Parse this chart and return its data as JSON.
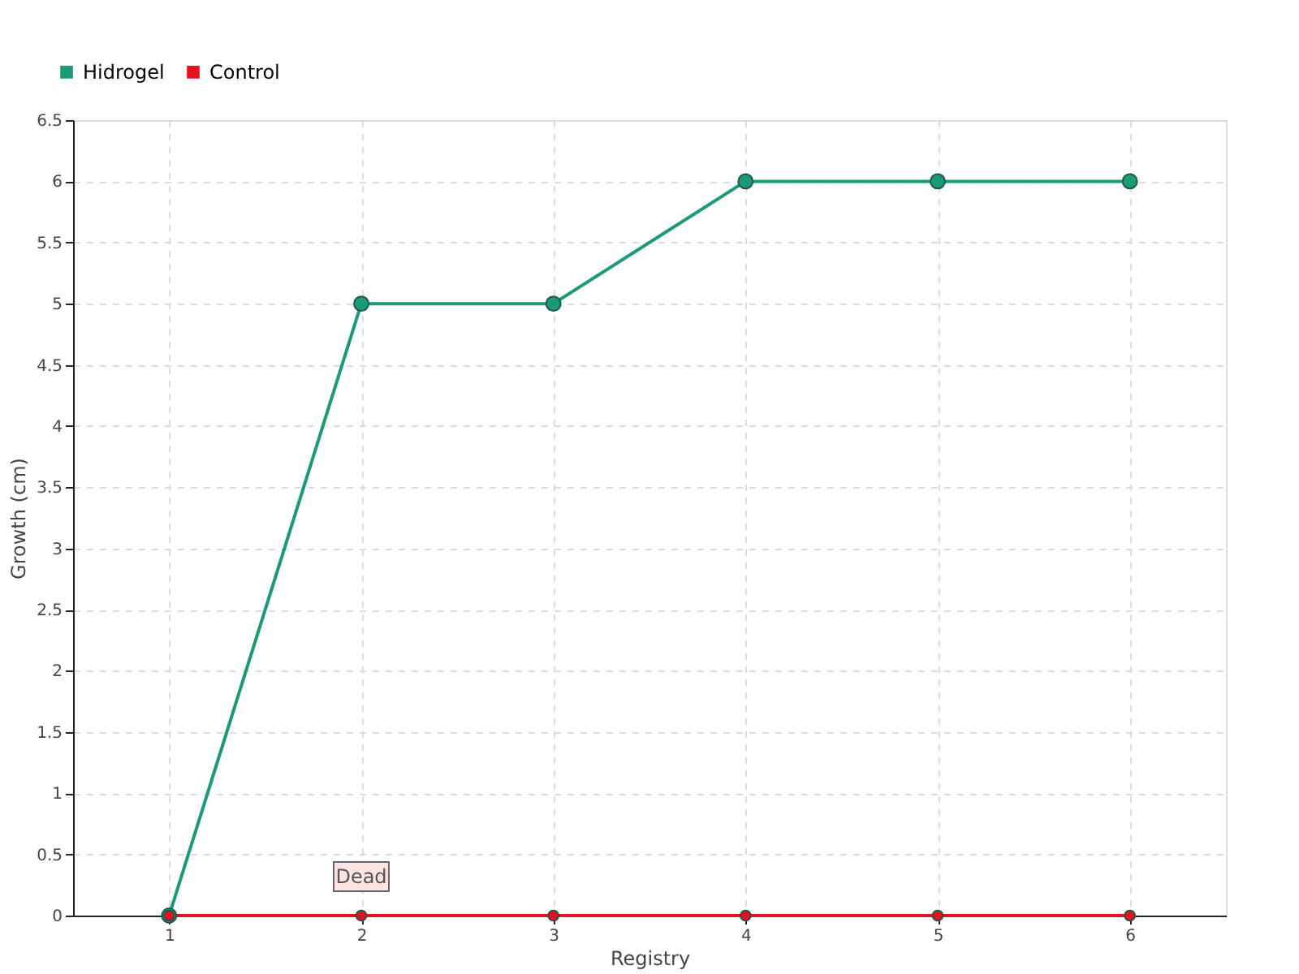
{
  "chart_data": {
    "type": "line",
    "xlabel": "Registry",
    "ylabel": "Growth (cm)",
    "categories": [
      "1",
      "2",
      "3",
      "4",
      "5",
      "6"
    ],
    "series": [
      {
        "name": "Hidrogel",
        "color": "#1b9a77",
        "values": [
          0,
          5,
          5,
          6,
          6,
          6
        ]
      },
      {
        "name": "Control",
        "color": "#e8111f",
        "values": [
          0,
          0,
          0,
          0,
          0,
          0
        ]
      }
    ],
    "ylim": [
      0,
      6.5
    ],
    "yticks": [
      0,
      0.5,
      1,
      1.5,
      2,
      2.5,
      3,
      3.5,
      4,
      4.5,
      5,
      5.5,
      6,
      6.5
    ],
    "grid": true,
    "legend": "top left",
    "marker": "circle",
    "line_style": "solid",
    "annotations": [
      {
        "text": "Dead",
        "x": "2",
        "y": 0
      }
    ]
  }
}
